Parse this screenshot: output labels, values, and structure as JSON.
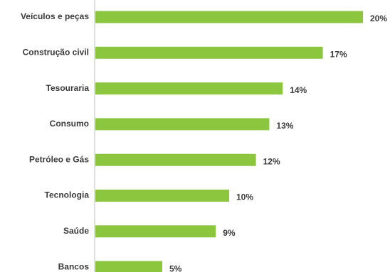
{
  "chart_data": {
    "type": "bar",
    "orientation": "horizontal",
    "categories": [
      "Veículos e peças",
      "Construção civil",
      "Tesouraria",
      "Consumo",
      "Petróleo e Gás",
      "Tecnologia",
      "Saúde",
      "Bancos"
    ],
    "values": [
      20,
      17,
      14,
      13,
      12,
      10,
      9,
      5
    ],
    "value_labels": [
      "20%",
      "17%",
      "14%",
      "13%",
      "12%",
      "10%",
      "9%",
      "5%"
    ],
    "unit": "%",
    "title": "",
    "xlabel": "",
    "ylabel": "",
    "xlim": [
      0,
      20
    ],
    "grid": false,
    "legend": "none",
    "bar_color": "#8cc63f",
    "axis_color": "#bfbfbf",
    "text_color": "#3a3a3a"
  }
}
